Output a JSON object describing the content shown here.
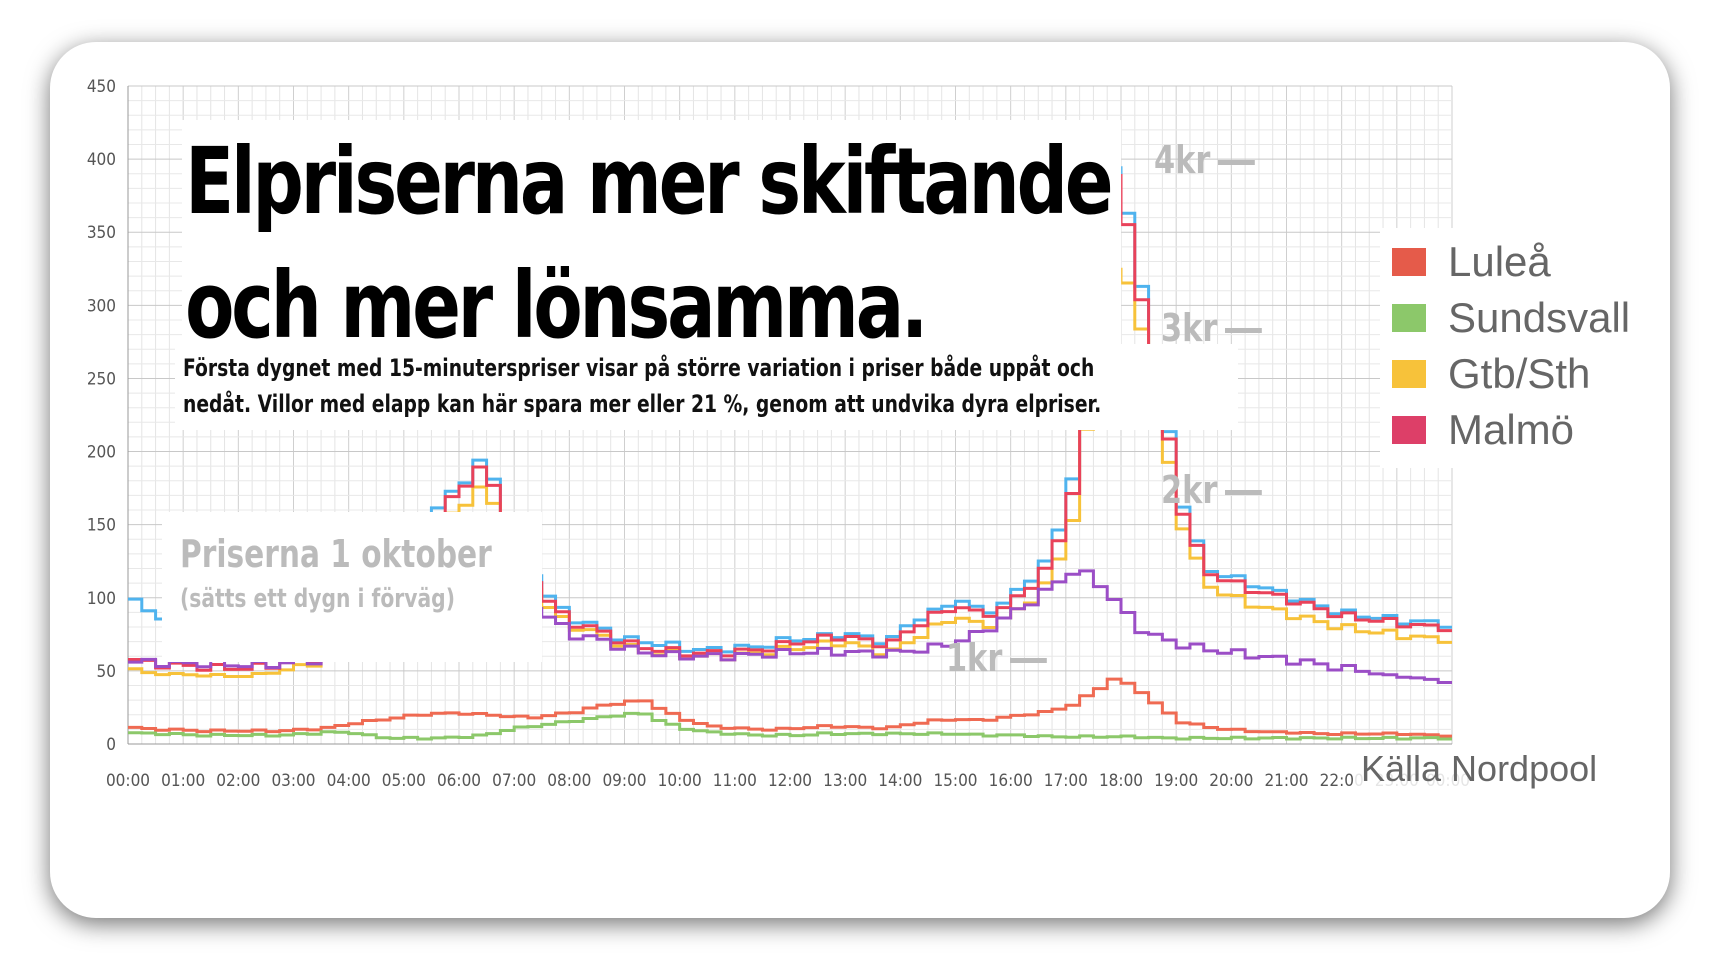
{
  "headline": {
    "line1": "Elpriserna mer skiftande",
    "line2": "och mer lönsamma."
  },
  "subtitle": {
    "line1": "Första dygnet med 15-minuterspriser visar på större variation i priser både uppåt och",
    "line2": "nedåt. Villor med elapp kan här spara mer eller 21 %, genom att undvika dyra elpriser."
  },
  "date_note": {
    "title": "Priserna 1 oktober",
    "sub": "(sätts ett dygn i förväg)"
  },
  "kr_labels": [
    "4kr",
    "3kr",
    "2kr",
    "1kr"
  ],
  "source": "Källa Nordpool",
  "chart_data": {
    "type": "line",
    "ylim": [
      0,
      450
    ],
    "yticks": [
      0,
      50,
      100,
      150,
      200,
      250,
      300,
      350,
      400,
      450
    ],
    "xticks": [
      "00:00",
      "01:00",
      "02:00",
      "03:00",
      "04:00",
      "05:00",
      "06:00",
      "07:00",
      "08:00",
      "09:00",
      "10:00",
      "11:00",
      "12:00",
      "13:00",
      "14:00",
      "15:00",
      "16:00",
      "17:00",
      "18:00",
      "19:00",
      "20:00",
      "21:00",
      "22:00",
      "23:00",
      "00:00"
    ],
    "step": "quarter-hour",
    "legend": {
      "placement": "top-right",
      "entries": [
        "Luleå",
        "Sundsvall",
        "Gtb/Sth",
        "Malmö"
      ]
    },
    "grid": true,
    "series": [
      {
        "color": "#4fb3ee",
        "hourly": [
          104,
          88,
          88,
          86,
          88,
          90,
          92,
          88,
          86,
          94,
          105,
          115,
          125,
          140,
          165,
          180,
          198,
          140,
          120,
          95,
          85,
          80,
          72,
          70,
          68,
          65,
          64,
          66,
          66,
          70,
          72,
          73,
          76,
          72,
          70,
          85,
          90,
          100,
          90,
          95,
          110,
          125,
          170,
          300,
          400,
          330,
          245,
          165,
          120,
          115,
          110,
          105,
          100,
          95,
          90,
          88,
          86,
          84,
          83,
          82
        ]
      },
      {
        "color": "#e9425a",
        "hourly": [
          59,
          55,
          54,
          53,
          52,
          52,
          53,
          55,
          58,
          62,
          80,
          100,
          120,
          140,
          160,
          178,
          192,
          140,
          115,
          92,
          82,
          78,
          70,
          66,
          64,
          62,
          62,
          63,
          64,
          67,
          70,
          72,
          74,
          70,
          68,
          80,
          88,
          95,
          88,
          92,
          105,
          120,
          160,
          290,
          395,
          320,
          240,
          160,
          118,
          112,
          106,
          102,
          98,
          93,
          88,
          86,
          84,
          82,
          80,
          80
        ]
      },
      {
        "color": "#f7c23a",
        "hourly": [
          53,
          48,
          48,
          47,
          47,
          46,
          48,
          50,
          54,
          60,
          75,
          92,
          108,
          128,
          150,
          165,
          178,
          132,
          110,
          88,
          80,
          75,
          68,
          63,
          62,
          60,
          60,
          60,
          62,
          64,
          66,
          68,
          70,
          65,
          62,
          72,
          80,
          88,
          80,
          85,
          95,
          110,
          145,
          240,
          330,
          300,
          220,
          150,
          110,
          102,
          96,
          92,
          88,
          84,
          80,
          78,
          76,
          74,
          72,
          72
        ]
      },
      {
        "color": "#9b4ec6",
        "hourly": [
          56,
          56,
          55,
          55,
          55,
          54,
          54,
          55,
          57,
          58,
          60,
          65,
          70,
          78,
          85,
          90,
          93,
          112,
          96,
          84,
          74,
          72,
          66,
          63,
          61,
          60,
          60,
          60,
          61,
          62,
          63,
          63,
          63,
          62,
          62,
          64,
          66,
          70,
          76,
          85,
          95,
          105,
          118,
          115,
          98,
          80,
          72,
          68,
          65,
          63,
          61,
          59,
          57,
          55,
          52,
          50,
          47,
          46,
          44,
          42
        ]
      },
      {
        "color": "#ef6a52",
        "hourly": [
          12,
          10,
          10,
          9,
          9,
          9,
          9,
          9,
          10,
          11,
          14,
          16,
          18,
          20,
          21,
          21,
          20,
          19,
          18,
          20,
          22,
          26,
          28,
          30,
          22,
          16,
          12,
          11,
          10,
          10,
          11,
          12,
          12,
          11,
          11,
          14,
          16,
          17,
          16,
          18,
          20,
          22,
          26,
          35,
          45,
          38,
          25,
          15,
          12,
          10,
          9,
          8,
          8,
          7,
          7,
          7,
          7,
          7,
          6,
          6
        ]
      },
      {
        "color": "#8cc86a",
        "hourly": [
          8,
          7,
          7,
          6,
          6,
          6,
          6,
          6,
          7,
          8,
          8,
          5,
          4,
          4,
          4,
          5,
          6,
          10,
          12,
          14,
          16,
          18,
          20,
          21,
          14,
          10,
          8,
          7,
          6,
          6,
          6,
          7,
          7,
          7,
          7,
          7,
          7,
          7,
          6,
          6,
          6,
          5,
          5,
          5,
          5,
          5,
          4,
          4,
          4,
          4,
          4,
          4,
          4,
          4,
          4,
          4,
          4,
          4,
          4,
          4
        ]
      }
    ]
  },
  "colors": {
    "lulea": "#e55b4a",
    "sundsvall": "#8cc86a",
    "gtb_sth": "#f7c23a",
    "malmo": "#dd3f68",
    "grid": "#d6d6d6",
    "faded_text": "#bbbbbb"
  }
}
